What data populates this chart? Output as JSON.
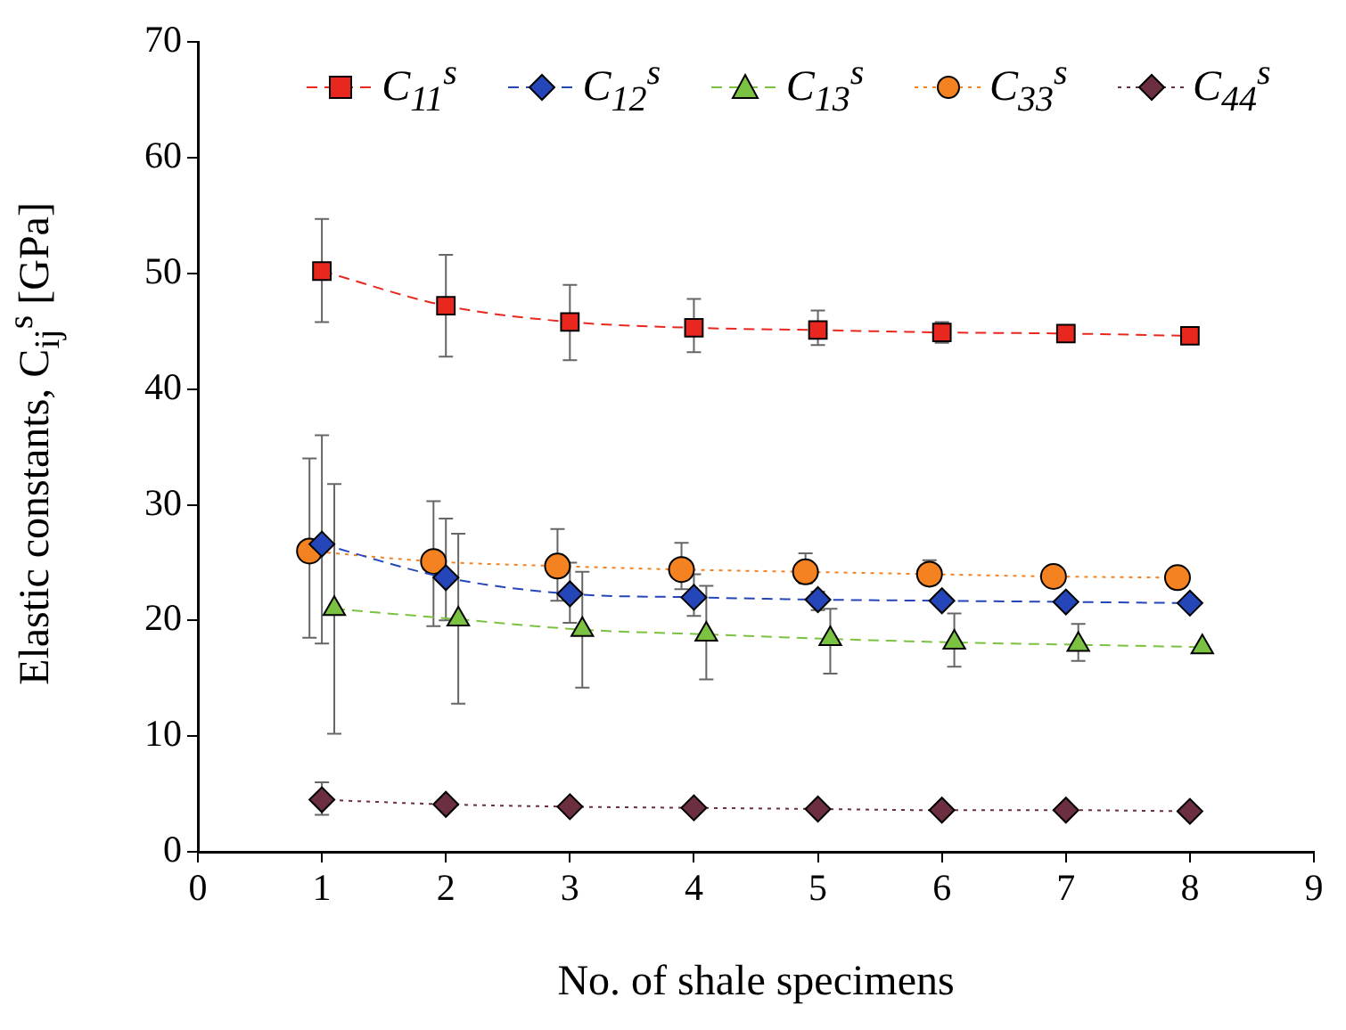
{
  "chart_data": {
    "type": "line",
    "xlabel": "No. of shale specimens",
    "ylabel": "Elastic constants,  C$_{ij}$$^{s}$  [GPa]",
    "xlim": [
      0,
      9
    ],
    "xticks": [
      0,
      1,
      2,
      3,
      4,
      5,
      6,
      7,
      8,
      9
    ],
    "ylim": [
      0,
      70
    ],
    "yticks": [
      0,
      10,
      20,
      30,
      40,
      50,
      60,
      70
    ],
    "grid": false,
    "legend": "top",
    "series": [
      {
        "name": "C$_{11}$$^{s}$",
        "color": "#e8281e",
        "marker": "square",
        "line_style": "dashed",
        "x": [
          1,
          2,
          3,
          4,
          5,
          6,
          7,
          8
        ],
        "values": [
          50.2,
          47.2,
          45.8,
          45.3,
          45.1,
          44.9,
          44.8,
          44.6
        ],
        "errors": [
          [
            45.8,
            54.7
          ],
          [
            42.8,
            51.6
          ],
          [
            42.5,
            49
          ],
          [
            43.2,
            47.8
          ],
          [
            43.8,
            46.8
          ],
          [
            44,
            45.8
          ],
          null,
          null
        ]
      },
      {
        "name": "C$_{12}$$^{s}$",
        "color": "#2446b8",
        "marker": "diamond",
        "line_style": "dashed",
        "x": [
          1,
          2,
          3,
          4,
          5,
          6,
          7,
          8
        ],
        "values": [
          26.6,
          23.7,
          22.3,
          22.0,
          21.8,
          21.7,
          21.6,
          21.5
        ],
        "errors": [
          [
            18,
            36
          ],
          [
            20,
            28.8
          ],
          [
            19.8,
            25
          ],
          [
            20.4,
            24
          ],
          [
            20.9,
            22.5
          ],
          null,
          null,
          null
        ]
      },
      {
        "name": "C$_{13}$$^{s}$",
        "color": "#7cc242",
        "marker": "triangle",
        "line_style": "dashed",
        "x": [
          1.1,
          2.1,
          3.1,
          4.1,
          5.1,
          6.1,
          7.1,
          8.1
        ],
        "values": [
          21.0,
          20.1,
          19.2,
          18.8,
          18.4,
          18.1,
          17.9,
          17.7
        ],
        "errors": [
          [
            10.2,
            31.8
          ],
          [
            12.8,
            27.5
          ],
          [
            14.2,
            24.2
          ],
          [
            14.9,
            23
          ],
          [
            15.4,
            21
          ],
          [
            16,
            20.6
          ],
          [
            16.5,
            19.7
          ],
          null
        ]
      },
      {
        "name": "C$_{33}$$^{s}$",
        "color": "#f58220",
        "marker": "circle",
        "line_style": "dotted",
        "x": [
          0.9,
          1.9,
          2.9,
          3.9,
          4.9,
          5.9,
          6.9,
          7.9
        ],
        "values": [
          26.0,
          25.1,
          24.7,
          24.4,
          24.2,
          24.0,
          23.8,
          23.7
        ],
        "errors": [
          [
            18.5,
            34
          ],
          [
            19.5,
            30.3
          ],
          [
            21.7,
            27.9
          ],
          [
            22.7,
            26.7
          ],
          [
            23.2,
            25.8
          ],
          [
            23.3,
            25.2
          ],
          null,
          null
        ]
      },
      {
        "name": "C$_{44}$$^{s}$",
        "color": "#6b2f3f",
        "marker": "diamond",
        "line_style": "dotted",
        "x": [
          1,
          2,
          3,
          4,
          5,
          6,
          7,
          8
        ],
        "values": [
          4.5,
          4.1,
          3.9,
          3.8,
          3.7,
          3.6,
          3.6,
          3.5
        ],
        "errors": [
          [
            3.2,
            6
          ],
          null,
          null,
          null,
          null,
          null,
          null,
          null
        ]
      }
    ]
  }
}
